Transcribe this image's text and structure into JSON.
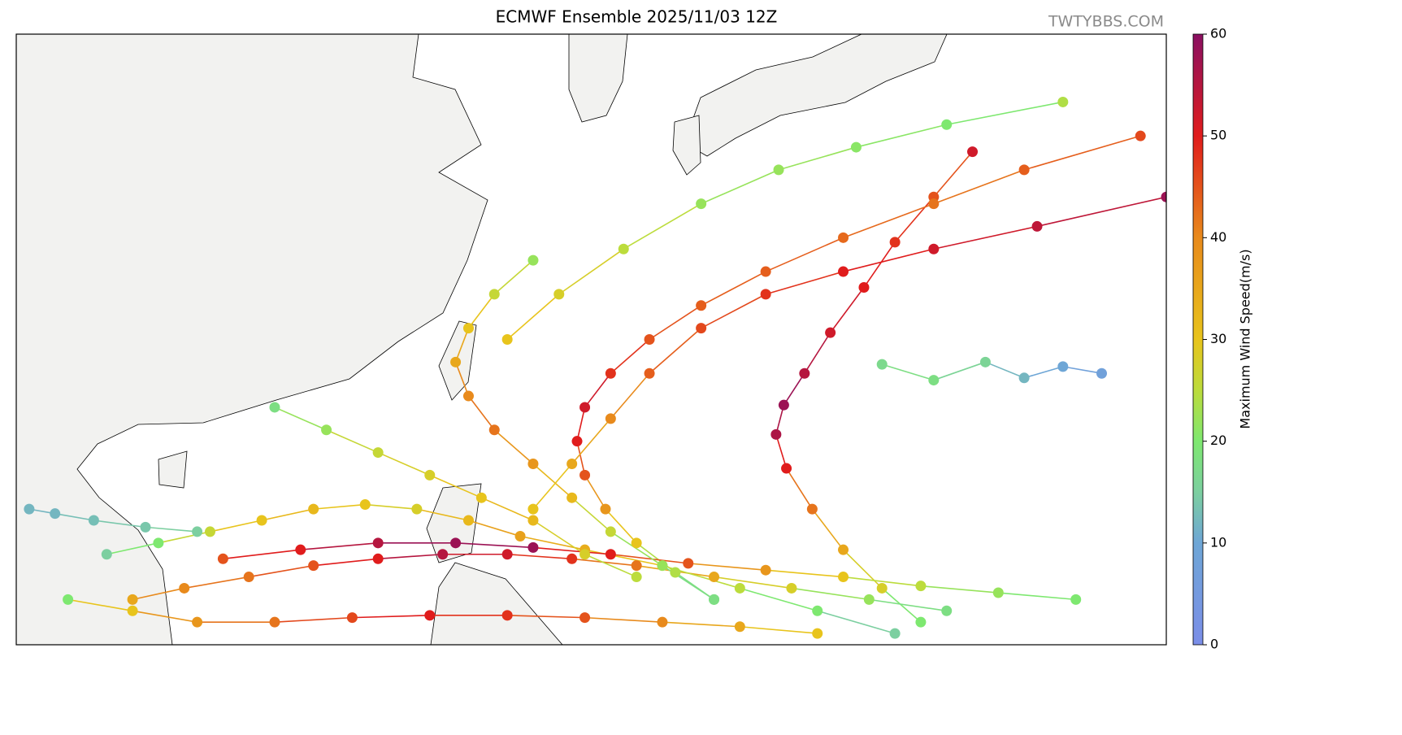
{
  "chart_data": {
    "type": "map",
    "title": "ECMWF Ensemble 2025/11/03 12Z",
    "watermark": "TWTYBBS.COM",
    "xlim": [
      104,
      148.5
    ],
    "ylim": [
      11,
      38
    ],
    "colorbar": {
      "label": "Maximum Wind Speed(m/s)",
      "lim": [
        0,
        60
      ],
      "ticks": [
        0,
        10,
        20,
        30,
        40,
        50,
        60
      ],
      "colormap": [
        {
          "value": 0,
          "color": "#7b8ee8"
        },
        {
          "value": 10,
          "color": "#6ea6d6"
        },
        {
          "value": 15,
          "color": "#7ccfa0"
        },
        {
          "value": 20,
          "color": "#7ee870"
        },
        {
          "value": 25,
          "color": "#bcdc3c"
        },
        {
          "value": 30,
          "color": "#e8c41c"
        },
        {
          "value": 40,
          "color": "#e88a1c"
        },
        {
          "value": 50,
          "color": "#e01c1c"
        },
        {
          "value": 60,
          "color": "#8a1062"
        }
      ]
    },
    "tracks": [
      {
        "lon": [
          139,
          137.5,
          136,
          134.8,
          133.8,
          133.4,
          133.7,
          134.5,
          135.5,
          136.8,
          138,
          139.5,
          141
        ],
        "lat": [
          12,
          13.5,
          15.2,
          17,
          18.8,
          20.3,
          21.6,
          23,
          24.8,
          26.8,
          28.8,
          30.8,
          32.8
        ],
        "wind": [
          20,
          28,
          35,
          42,
          50,
          56,
          58,
          55,
          52,
          50,
          48,
          45,
          52
        ]
      },
      {
        "lon": [
          131,
          129.5,
          128,
          126.8,
          126,
          125.7,
          126,
          127,
          128.5,
          130.5,
          133,
          136,
          139.5,
          143,
          147.5
        ],
        "lat": [
          13,
          14.2,
          15.5,
          17,
          18.5,
          20,
          21.5,
          23,
          24.5,
          26,
          27.5,
          29,
          30.5,
          32,
          33.5
        ],
        "wind": [
          18,
          24,
          30,
          38,
          45,
          50,
          52,
          48,
          45,
          44,
          44,
          43,
          42,
          44,
          46
        ]
      },
      {
        "lon": [
          140,
          137,
          134,
          131,
          128,
          125.5,
          123,
          120.5,
          118,
          115.5,
          113,
          110.5,
          108.5
        ],
        "lat": [
          12.5,
          13,
          13.5,
          14,
          14.5,
          14.8,
          15,
          15,
          14.8,
          14.5,
          14,
          13.5,
          13
        ],
        "wind": [
          18,
          22,
          28,
          35,
          42,
          48,
          52,
          55,
          50,
          45,
          42,
          40,
          35
        ]
      },
      {
        "lon": [
          138,
          135,
          132,
          129,
          126,
          123.5,
          121.5,
          119.5,
          117.5,
          115.5,
          113.5,
          111.5,
          109.5,
          107.5
        ],
        "lat": [
          11.5,
          12.5,
          13.5,
          14.5,
          15.2,
          15.8,
          16.5,
          17,
          17.2,
          17,
          16.5,
          16,
          15.5,
          15
        ],
        "wind": [
          15,
          20,
          25,
          30,
          34,
          36,
          32,
          28,
          30,
          32,
          30,
          26,
          20,
          15
        ]
      },
      {
        "lon": [
          145,
          142,
          139,
          136,
          133,
          130,
          127,
          124,
          121,
          118,
          115,
          112
        ],
        "lat": [
          13,
          13.3,
          13.6,
          14,
          14.3,
          14.6,
          15,
          15.3,
          15.5,
          15.5,
          15.2,
          14.8
        ],
        "wind": [
          20,
          22,
          25,
          30,
          38,
          45,
          50,
          58,
          58,
          55,
          50,
          45
        ]
      },
      {
        "lon": [
          131,
          129,
          127,
          125.5,
          124,
          122.5,
          121.5,
          121,
          121.5,
          122.5,
          124
        ],
        "lat": [
          13,
          14.5,
          16,
          17.5,
          19,
          20.5,
          22,
          23.5,
          25,
          26.5,
          28
        ],
        "wind": [
          18,
          22,
          26,
          32,
          38,
          42,
          40,
          35,
          30,
          26,
          22
        ]
      },
      {
        "lon": [
          123,
          125,
          127.5,
          130.5,
          133.5,
          136.5,
          140,
          144.5
        ],
        "lat": [
          24.5,
          26.5,
          28.5,
          30.5,
          32,
          33,
          34,
          35
        ],
        "wind": [
          30,
          28,
          25,
          22,
          22,
          21,
          20,
          24
        ]
      },
      {
        "lon": [
          146,
          144.5,
          143,
          141.5,
          139.5,
          137.5
        ],
        "lat": [
          23,
          23.3,
          22.8,
          23.5,
          22.7,
          23.4
        ],
        "wind": [
          8,
          10,
          12,
          16,
          18,
          17
        ]
      },
      {
        "lon": [
          135,
          132,
          129,
          126,
          123,
          120,
          117,
          114,
          111,
          108.5,
          106
        ],
        "lat": [
          11.5,
          11.8,
          12,
          12.2,
          12.3,
          12.3,
          12.2,
          12,
          12,
          12.5,
          13
        ],
        "wind": [
          30,
          35,
          40,
          45,
          48,
          50,
          46,
          42,
          38,
          30,
          20
        ]
      },
      {
        "lon": [
          128,
          126,
          124,
          122,
          120,
          118,
          116,
          114
        ],
        "lat": [
          14,
          15,
          16.5,
          17.5,
          18.5,
          19.5,
          20.5,
          21.5
        ],
        "wind": [
          25,
          28,
          32,
          30,
          28,
          26,
          22,
          18
        ]
      },
      {
        "lon": [
          111,
          109,
          107,
          105.5,
          104.5
        ],
        "lat": [
          16,
          16.2,
          16.5,
          16.8,
          17
        ],
        "wind": [
          15,
          14,
          13,
          12,
          12
        ]
      },
      {
        "lon": [
          124,
          125.5,
          127,
          128.5,
          130.5,
          133,
          136,
          139.5,
          143.5,
          148.5
        ],
        "lat": [
          17,
          19,
          21,
          23,
          25,
          26.5,
          27.5,
          28.5,
          29.5,
          30.8
        ],
        "wind": [
          30,
          35,
          40,
          44,
          46,
          48,
          50,
          52,
          54,
          58
        ]
      }
    ]
  }
}
